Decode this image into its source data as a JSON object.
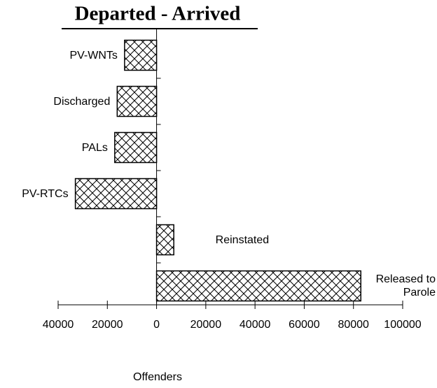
{
  "chart_data": {
    "type": "bar",
    "orientation": "horizontal",
    "title": "Departed - Arrived",
    "x_label": "Offenders",
    "categories": [
      "PV-WNTs",
      "Discharged",
      "PALs",
      "PV-RTCs",
      "Reinstated",
      "Released to Parole"
    ],
    "values": [
      -13000,
      -16000,
      -17000,
      -33000,
      7000,
      83000
    ],
    "color": "#000000",
    "xlim": [
      -40000,
      100000
    ],
    "xticks": [
      {
        "value": -40000,
        "label": "40000"
      },
      {
        "value": -20000,
        "label": "20000"
      },
      0,
      20000,
      40000,
      60000,
      80000,
      100000
    ],
    "grid": false
  }
}
